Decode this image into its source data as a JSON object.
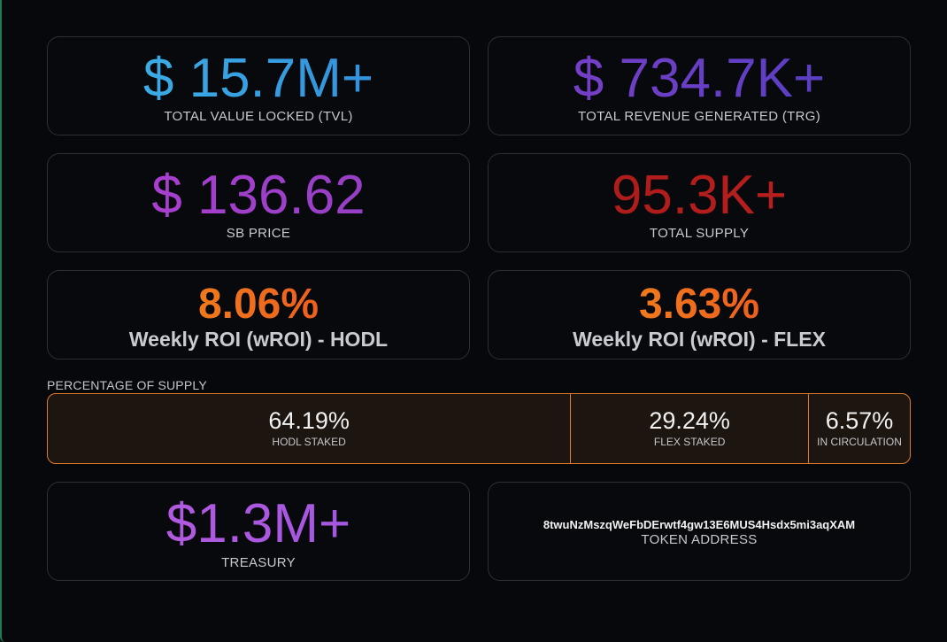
{
  "stats": {
    "tvl": {
      "value": "$ 15.7M+",
      "label": "TOTAL VALUE LOCKED (TVL)"
    },
    "trg": {
      "value": "$ 734.7K+",
      "label": "TOTAL REVENUE GENERATED (TRG)"
    },
    "sb_price": {
      "value": "$ 136.62",
      "label": "SB PRICE"
    },
    "total_supply": {
      "value": "95.3K+",
      "label": "TOTAL SUPPLY"
    }
  },
  "roi": {
    "hodl": {
      "value": "8.06%",
      "label": "Weekly ROI (wROI) - HODL"
    },
    "flex": {
      "value": "3.63%",
      "label": "Weekly ROI (wROI) - FLEX"
    }
  },
  "supply": {
    "title": "PERCENTAGE OF SUPPLY",
    "segments": [
      {
        "value": "64.19%",
        "label": "HODL STAKED",
        "percent": 64.19
      },
      {
        "value": "29.24%",
        "label": "FLEX STAKED",
        "percent": 29.24
      },
      {
        "value": "6.57%",
        "label": "IN CIRCULATION",
        "percent": 6.57
      }
    ]
  },
  "treasury": {
    "value": "$1.3M+",
    "label": "TREASURY"
  },
  "token": {
    "address": "8twuNzMszqWeFbDErwtf4gw13E6MUS4Hsdx5mi3aqXAM",
    "label": "TOKEN ADDRESS"
  },
  "colors": {
    "accent_border": "#e07a2a",
    "tvl": "#2f9ae0",
    "trg": "#6a3fc6",
    "sb_price": "#9e3fca",
    "total_supply": "#b01d1d",
    "roi": "#f0701e",
    "treasury": "#aa58e0"
  }
}
